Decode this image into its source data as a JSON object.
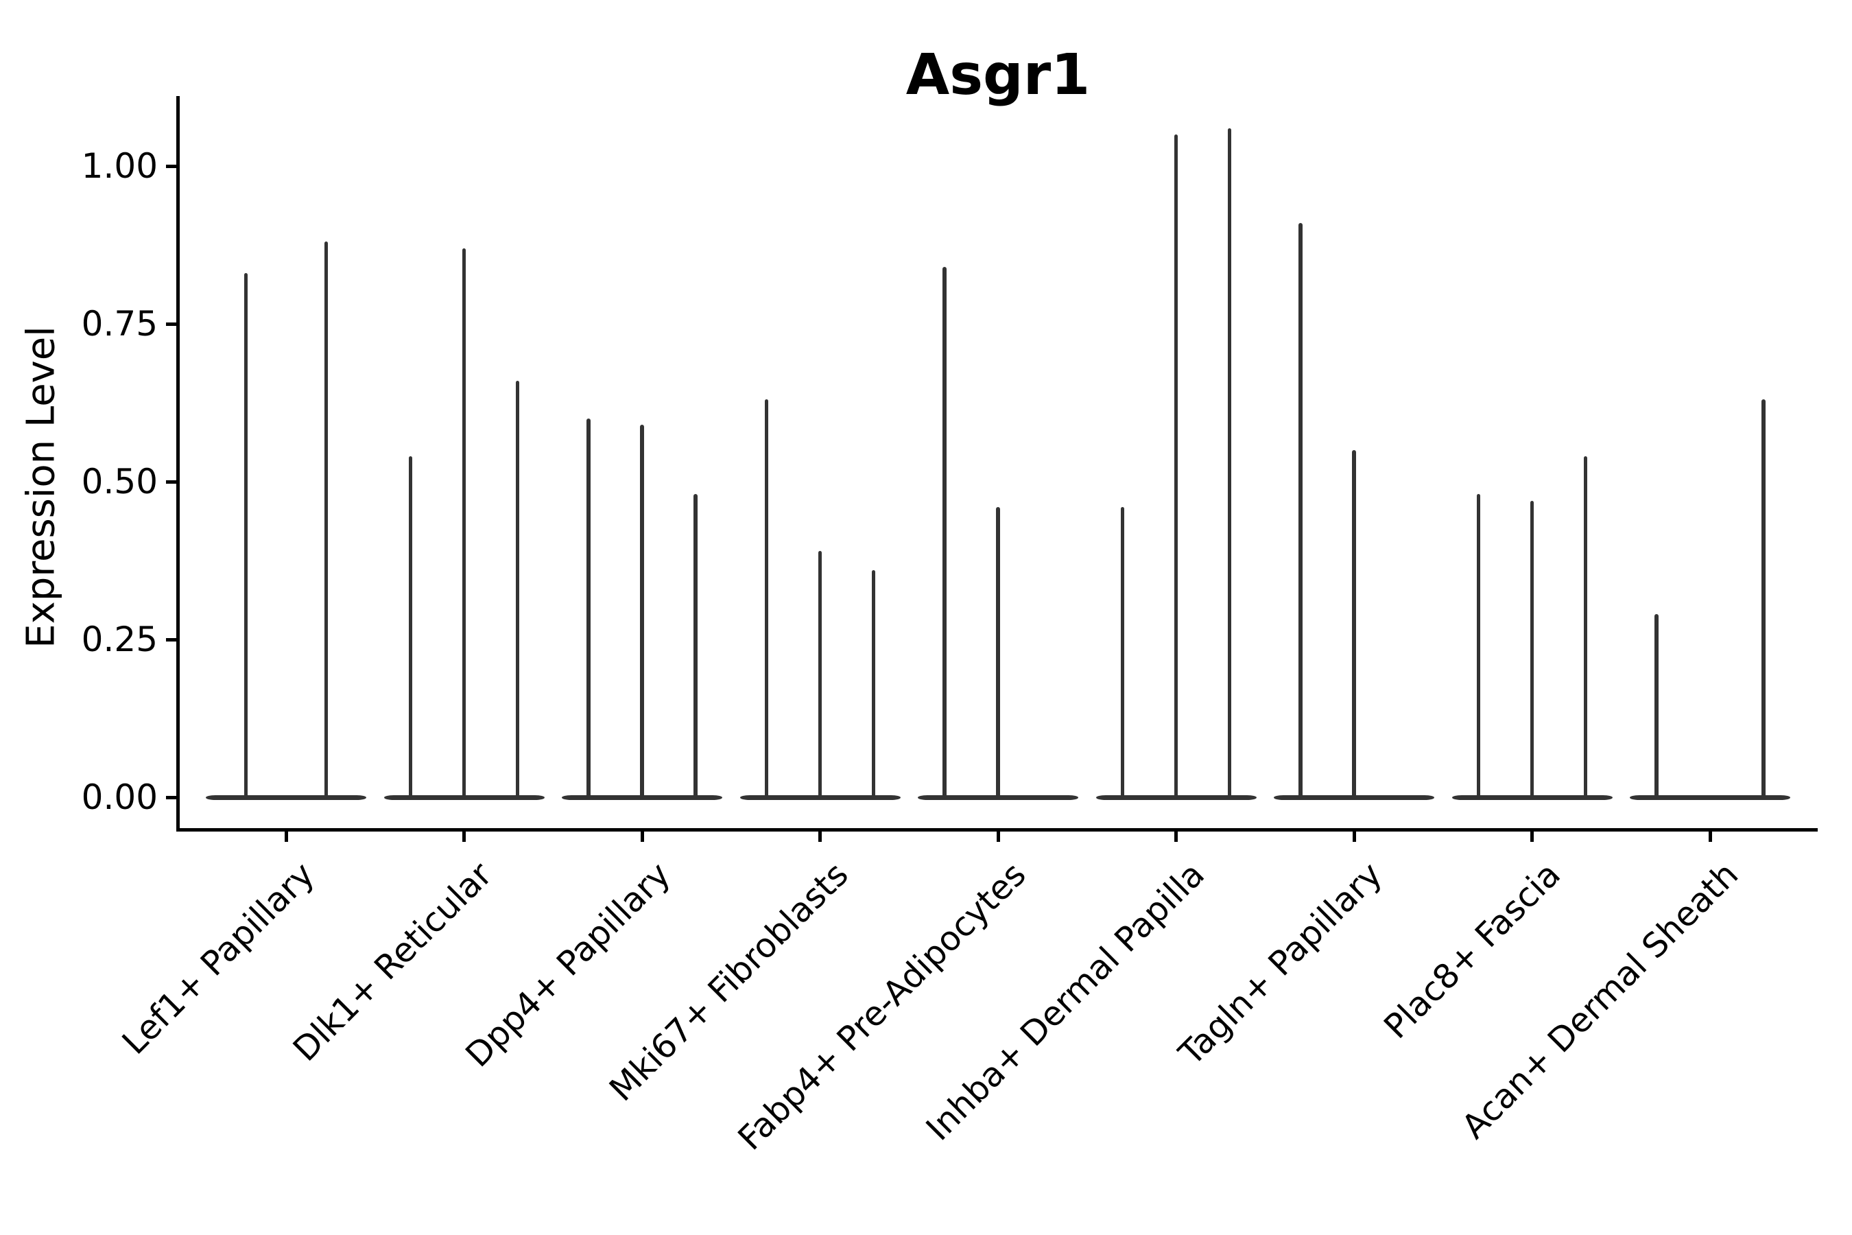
{
  "chart_data": {
    "type": "violin",
    "title": "Asgr1",
    "ylabel": "Expression Level",
    "xlabel": "",
    "ylim": [
      -0.05,
      1.11
    ],
    "grid": false,
    "legend": "none",
    "x_label_rotation_deg": 45,
    "ytick_labels": [
      "0.00",
      "0.25",
      "0.50",
      "0.75",
      "1.00"
    ],
    "yticks": [
      0.0,
      0.25,
      0.5,
      0.75,
      1.0
    ],
    "categories": [
      "Lef1+ Papillary",
      "Dlk1+ Reticular",
      "Dpp4+ Papillary",
      "Mki67+ Fibroblasts",
      "Fabp4+ Pre-Adipocytes",
      "Inhba+ Dermal Papilla",
      "Tagln+ Papillary",
      "Plac8+ Fascia",
      "Acan+ Dermal Sheath"
    ],
    "violins_note": "Each category holds 2-3 very thin spike violins; value = top of each spike (max expression); 0 = completely flat violin lying on the baseline",
    "violins": [
      {
        "category": "Lef1+ Papillary",
        "values": [
          0.83,
          0.88
        ]
      },
      {
        "category": "Dlk1+ Reticular",
        "values": [
          0.54,
          0.87,
          0.66
        ]
      },
      {
        "category": "Dpp4+ Papillary",
        "values": [
          0.6,
          0.59,
          0.48
        ]
      },
      {
        "category": "Mki67+ Fibroblasts",
        "values": [
          0.63,
          0.39,
          0.36
        ]
      },
      {
        "category": "Fabp4+ Pre-Adipocytes",
        "values": [
          0.84,
          0.46,
          0
        ]
      },
      {
        "category": "Inhba+ Dermal Papilla",
        "values": [
          0.46,
          1.05,
          1.06
        ]
      },
      {
        "category": "Tagln+ Papillary",
        "values": [
          0.91,
          0.55,
          0
        ]
      },
      {
        "category": "Plac8+ Fascia",
        "values": [
          0.48,
          0.47,
          0.54
        ]
      },
      {
        "category": "Acan+ Dermal Sheath",
        "values": [
          0.29,
          0,
          0.63
        ]
      }
    ],
    "colors": {
      "violin_outline": "#333333",
      "axis": "#000000",
      "text": "#000000",
      "background": "#ffffff"
    }
  }
}
